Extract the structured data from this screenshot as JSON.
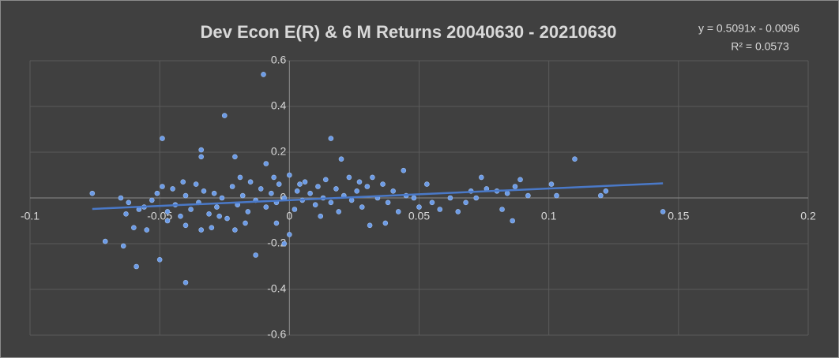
{
  "chart_data": {
    "type": "scatter",
    "title": "Dev Econ     E(R) & 6 M Returns 20040630 - 20210630",
    "trendline": {
      "label": "y = 0.5091x - 0.0096",
      "r2_label": "R² = 0.0573",
      "slope": 0.5091,
      "intercept": -0.0096,
      "color": "#4a79c8"
    },
    "color": "#6c9be6",
    "xlim": [
      -0.1,
      0.2
    ],
    "xticks": [
      -0.1,
      -0.05,
      0,
      0.05,
      0.1,
      0.15,
      0.2
    ],
    "ylim": [
      -0.6,
      0.6
    ],
    "yticks": [
      -0.6,
      -0.4,
      -0.2,
      0,
      0.2,
      0.4,
      0.6
    ],
    "grid": true,
    "x": [
      -0.076,
      -0.071,
      -0.064,
      -0.059,
      -0.05,
      -0.04,
      -0.049,
      -0.034,
      -0.034,
      -0.025,
      -0.021,
      -0.013,
      -0.01,
      -0.009,
      -0.002,
      0.0,
      0.016,
      0.02,
      0.044,
      0.053,
      0.11,
      0.122,
      0.12,
      0.144,
      0.103,
      0.086,
      0.031,
      0.037,
      -0.063,
      -0.06,
      -0.055,
      -0.04,
      -0.034,
      -0.03,
      -0.021,
      -0.017,
      -0.005,
      -0.065,
      -0.062,
      -0.058,
      -0.056,
      -0.053,
      -0.051,
      -0.049,
      -0.047,
      -0.045,
      -0.044,
      -0.042,
      -0.04,
      -0.038,
      -0.036,
      -0.035,
      -0.033,
      -0.031,
      -0.029,
      -0.028,
      -0.026,
      -0.024,
      -0.022,
      -0.02,
      -0.018,
      -0.016,
      -0.015,
      -0.013,
      -0.011,
      -0.009,
      -0.007,
      -0.005,
      -0.004,
      -0.002,
      0.0,
      0.002,
      0.003,
      0.005,
      0.006,
      0.008,
      0.01,
      0.011,
      0.013,
      0.014,
      0.016,
      0.018,
      0.019,
      0.021,
      0.023,
      0.024,
      0.026,
      0.028,
      0.03,
      0.032,
      0.034,
      0.036,
      0.038,
      0.04,
      0.042,
      0.045,
      0.048,
      0.05,
      0.055,
      0.058,
      0.062,
      0.065,
      0.068,
      0.07,
      0.072,
      0.074,
      0.076,
      0.08,
      0.082,
      0.084,
      0.087,
      0.089,
      0.092,
      0.101,
      -0.047,
      -0.027,
      -0.006,
      0.004,
      0.012,
      0.027,
      -0.019,
      -0.041
    ],
    "values": [
      0.02,
      -0.19,
      -0.21,
      -0.3,
      -0.27,
      -0.37,
      0.26,
      0.18,
      0.21,
      0.36,
      0.18,
      -0.25,
      0.54,
      0.15,
      -0.2,
      -0.16,
      0.26,
      0.17,
      0.12,
      0.06,
      0.17,
      0.03,
      0.01,
      -0.06,
      0.01,
      -0.1,
      -0.12,
      -0.11,
      -0.07,
      -0.13,
      -0.14,
      -0.12,
      -0.14,
      -0.13,
      -0.14,
      -0.11,
      -0.11,
      0.0,
      -0.02,
      -0.05,
      -0.04,
      -0.01,
      0.02,
      0.05,
      -0.06,
      0.04,
      -0.03,
      -0.08,
      0.01,
      -0.05,
      0.06,
      -0.02,
      0.03,
      -0.07,
      0.02,
      -0.04,
      0.0,
      -0.09,
      0.05,
      -0.03,
      0.01,
      -0.06,
      0.07,
      -0.01,
      0.04,
      -0.04,
      0.02,
      -0.02,
      0.06,
      0.0,
      0.1,
      -0.05,
      0.03,
      -0.01,
      0.07,
      0.02,
      -0.03,
      0.05,
      0.0,
      0.08,
      -0.02,
      0.04,
      -0.06,
      0.01,
      0.09,
      -0.01,
      0.03,
      -0.04,
      0.05,
      0.09,
      0.0,
      0.06,
      -0.02,
      0.03,
      -0.06,
      0.01,
      0.0,
      -0.04,
      -0.02,
      -0.05,
      0.0,
      -0.06,
      -0.02,
      0.03,
      0.0,
      0.09,
      0.04,
      0.03,
      -0.05,
      0.02,
      0.05,
      0.08,
      0.01,
      0.06,
      -0.1,
      -0.08,
      0.09,
      0.06,
      -0.08,
      0.07,
      0.09,
      0.07
    ]
  }
}
